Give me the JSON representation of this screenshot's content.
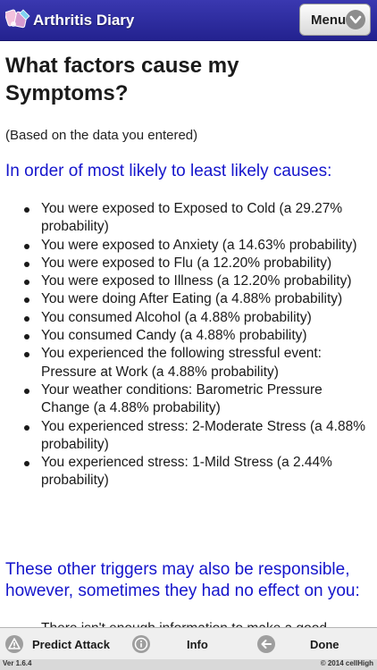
{
  "header": {
    "app_title": "Arthritis Diary",
    "menu_label": "Menu",
    "colors": {
      "bar": "#2a28a0",
      "menu_button": "#efefef"
    }
  },
  "main": {
    "title": "What factors cause my Symptoms?",
    "basis": "(Based on the data you entered)",
    "likely_heading": "In order of most likely to least likely causes:",
    "causes": [
      "You were exposed to Exposed to Cold (a 29.27% probability)",
      "You were exposed to Anxiety (a 14.63% probability)",
      "You were exposed to Flu (a 12.20% probability)",
      "You were exposed to Illness (a 12.20% probability)",
      "You were doing After Eating (a 4.88% probability)",
      "You consumed Alcohol (a 4.88% probability)",
      "You consumed Candy (a 4.88% probability)",
      "You experienced the following stressful event: Pressure at Work (a 4.88% probability)",
      "Your weather conditions: Barometric Pressure Change (a 4.88% probability)",
      "You experienced stress: 2-Moderate Stress (a 4.88% probability)",
      "You experienced stress: 1-Mild Stress (a 2.44% probability)"
    ],
    "other_heading": "These other triggers may also be responsible, however, sometimes they had no effect on you:",
    "other_items": [
      "There isn't enough information to make a good prediction. Add more data when you can."
    ],
    "heading_color": "#1515cc"
  },
  "toolbar": {
    "predict_label": "Predict Attack",
    "predict_icon": "warning-icon",
    "info_label": "Info",
    "info_icon": "info-icon",
    "done_label": "Done",
    "done_icon": "back-arrow-icon"
  },
  "footer": {
    "version": "Ver 1.6.4",
    "copyright": "© 2014 cellHigh"
  }
}
